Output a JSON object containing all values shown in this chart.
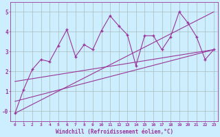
{
  "xlabel": "Windchill (Refroidissement éolien,°C)",
  "background_color": "#cceeff",
  "plot_bg_color": "#cceeff",
  "grid_color": "#aabbbb",
  "line_color": "#993399",
  "xlim": [
    -0.5,
    23.5
  ],
  "ylim": [
    -0.5,
    5.5
  ],
  "yticks": [
    0,
    1,
    2,
    3,
    4,
    5
  ],
  "ytick_labels": [
    "-0",
    "1",
    "2",
    "3",
    "4",
    "5"
  ],
  "xticks": [
    0,
    1,
    2,
    3,
    4,
    5,
    6,
    7,
    8,
    9,
    10,
    11,
    12,
    13,
    14,
    15,
    16,
    17,
    18,
    19,
    20,
    21,
    22,
    23
  ],
  "scatter_x": [
    0,
    1,
    2,
    3,
    4,
    5,
    6,
    7,
    8,
    9,
    10,
    11,
    12,
    13,
    14,
    15,
    16,
    17,
    18,
    19,
    20,
    21,
    22,
    23
  ],
  "scatter_y": [
    -0.1,
    1.1,
    2.1,
    2.6,
    2.5,
    3.3,
    4.1,
    2.75,
    3.35,
    3.1,
    4.05,
    4.8,
    4.3,
    3.85,
    2.3,
    3.8,
    3.8,
    3.1,
    3.75,
    5.0,
    4.45,
    3.75,
    2.6,
    3.1
  ],
  "line1_x": [
    0,
    23
  ],
  "line1_y": [
    -0.1,
    5.0
  ],
  "line2_x": [
    0,
    23
  ],
  "line2_y": [
    1.5,
    3.1
  ],
  "line3_x": [
    0,
    23
  ],
  "line3_y": [
    0.5,
    3.1
  ]
}
